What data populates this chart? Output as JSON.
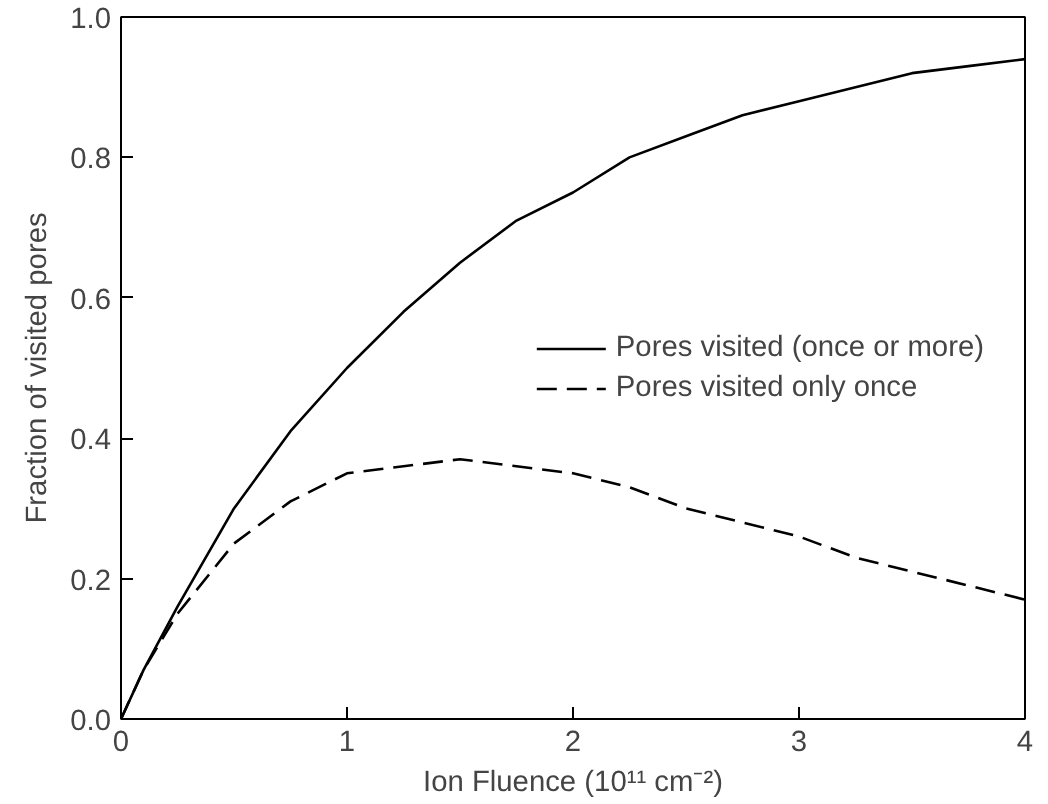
{
  "chart_data": {
    "type": "line",
    "xlabel": "Ion Fluence (10¹¹ cm⁻²)",
    "ylabel": "Fraction of visited pores",
    "x": [
      0,
      0.1,
      0.25,
      0.5,
      0.75,
      1,
      1.25,
      1.5,
      1.75,
      2,
      2.25,
      2.5,
      2.75,
      3,
      3.25,
      3.5,
      3.75,
      4
    ],
    "series": [
      {
        "name": "Pores visited (once or more)",
        "color": "#000000",
        "line_style": "solid",
        "values": [
          0,
          0.07,
          0.16,
          0.3,
          0.41,
          0.5,
          0.58,
          0.65,
          0.71,
          0.75,
          0.8,
          0.83,
          0.86,
          0.88,
          0.9,
          0.92,
          0.93,
          0.94
        ]
      },
      {
        "name": "Pores visited only once",
        "color": "#000000",
        "line_style": "dashed",
        "values": [
          0,
          0.07,
          0.15,
          0.25,
          0.31,
          0.35,
          0.36,
          0.37,
          0.36,
          0.35,
          0.33,
          0.3,
          0.28,
          0.26,
          0.23,
          0.21,
          0.19,
          0.17
        ]
      }
    ],
    "xlim": [
      0,
      4
    ],
    "ylim": [
      0,
      1
    ],
    "xticks": [
      0,
      1,
      2,
      3,
      4
    ],
    "yticks": [
      {
        "value": 0,
        "label": "0.0"
      },
      {
        "value": 0.2,
        "label": "0.2"
      },
      {
        "value": 0.4,
        "label": "0.4"
      },
      {
        "value": 0.6,
        "label": "0.6"
      },
      {
        "value": 0.8,
        "label": "0.8"
      },
      {
        "value": 1,
        "label": "1.0"
      }
    ],
    "grid": false,
    "legend": "right",
    "marker": "none"
  }
}
